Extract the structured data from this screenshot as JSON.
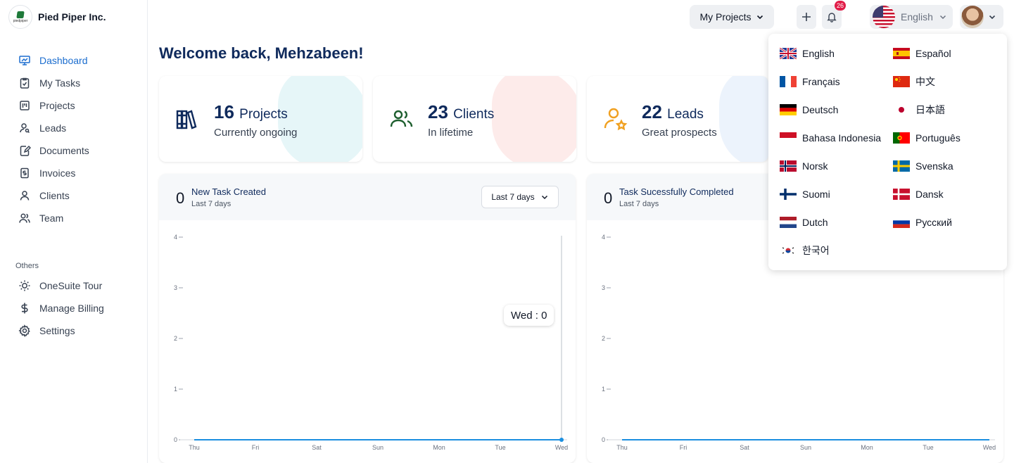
{
  "brand": {
    "name": "Pied Piper Inc.",
    "logo_text": "piedpiper"
  },
  "nav": {
    "items": [
      {
        "label": "Dashboard",
        "icon": "monitor-chart-icon",
        "active": true
      },
      {
        "label": "My Tasks",
        "icon": "clipboard-check-icon"
      },
      {
        "label": "Projects",
        "icon": "kanban-icon"
      },
      {
        "label": "Leads",
        "icon": "user-search-icon"
      },
      {
        "label": "Documents",
        "icon": "document-edit-icon"
      },
      {
        "label": "Invoices",
        "icon": "invoice-dollar-icon"
      },
      {
        "label": "Clients",
        "icon": "user-icon"
      },
      {
        "label": "Team",
        "icon": "users-icon"
      }
    ],
    "others_label": "Others",
    "others": [
      {
        "label": "OneSuite Tour",
        "icon": "sun-icon"
      },
      {
        "label": "Manage Billing",
        "icon": "dollar-icon"
      },
      {
        "label": "Settings",
        "icon": "gear-icon"
      }
    ]
  },
  "topbar": {
    "projects_label": "My Projects",
    "notification_count": "26",
    "language_label": "English"
  },
  "welcome": "Welcome back, Mehzabeen!",
  "stats": [
    {
      "count": "16",
      "unit": "Projects",
      "sub": "Currently ongoing",
      "icon": "books-icon",
      "color": "#0f2a5c",
      "blob": "#b8e6ea"
    },
    {
      "count": "23",
      "unit": "Clients",
      "sub": "In lifetime",
      "icon": "users-icon",
      "color": "#1d5e2e",
      "blob": "#f9c6c3"
    },
    {
      "count": "22",
      "unit": "Leads",
      "sub": "Great prospects",
      "icon": "user-star-icon",
      "color": "#f0a020",
      "blob": "#c9dcf7"
    }
  ],
  "panels": [
    {
      "count": "0",
      "title": "New Task Created",
      "subtitle": "Last 7 days",
      "range_label": "Last 7 days",
      "tooltip": "Wed : 0",
      "chart_data": {
        "type": "line",
        "categories": [
          "Thu",
          "Fri",
          "Sat",
          "Sun",
          "Mon",
          "Tue",
          "Wed"
        ],
        "values": [
          0,
          0,
          0,
          0,
          0,
          0,
          0
        ],
        "ylim": [
          0,
          4
        ],
        "yticks": [
          "0",
          "1",
          "2",
          "3",
          "4"
        ],
        "series_color": "#1b8fe0"
      }
    },
    {
      "count": "0",
      "title": "Task Sucessfully Completed",
      "subtitle": "Last 7 days",
      "chart_data": {
        "type": "line",
        "categories": [
          "Thu",
          "Fri",
          "Sat",
          "Sun",
          "Mon",
          "Tue",
          "Wed"
        ],
        "values": [
          0,
          0,
          0,
          0,
          0,
          0,
          0
        ],
        "ylim": [
          0,
          4
        ],
        "yticks": [
          "0",
          "1",
          "2",
          "3",
          "4"
        ],
        "series_color": "#1b8fe0"
      }
    }
  ],
  "languages": [
    {
      "label": "English",
      "flag": "uk-flag-icon"
    },
    {
      "label": "Español",
      "flag": "spain-flag-icon"
    },
    {
      "label": "Français",
      "flag": "france-flag-icon"
    },
    {
      "label": "中文",
      "flag": "china-flag-icon"
    },
    {
      "label": "Deutsch",
      "flag": "germany-flag-icon"
    },
    {
      "label": "日本語",
      "flag": "japan-flag-icon"
    },
    {
      "label": "Bahasa Indonesia",
      "flag": "indonesia-flag-icon"
    },
    {
      "label": "Português",
      "flag": "portugal-flag-icon"
    },
    {
      "label": "Norsk",
      "flag": "norway-flag-icon"
    },
    {
      "label": "Svenska",
      "flag": "sweden-flag-icon"
    },
    {
      "label": "Suomi",
      "flag": "finland-flag-icon"
    },
    {
      "label": "Dansk",
      "flag": "denmark-flag-icon"
    },
    {
      "label": "Dutch",
      "flag": "netherlands-flag-icon"
    },
    {
      "label": "Русский",
      "flag": "russia-flag-icon"
    },
    {
      "label": "한국어",
      "flag": "korea-flag-icon"
    }
  ]
}
